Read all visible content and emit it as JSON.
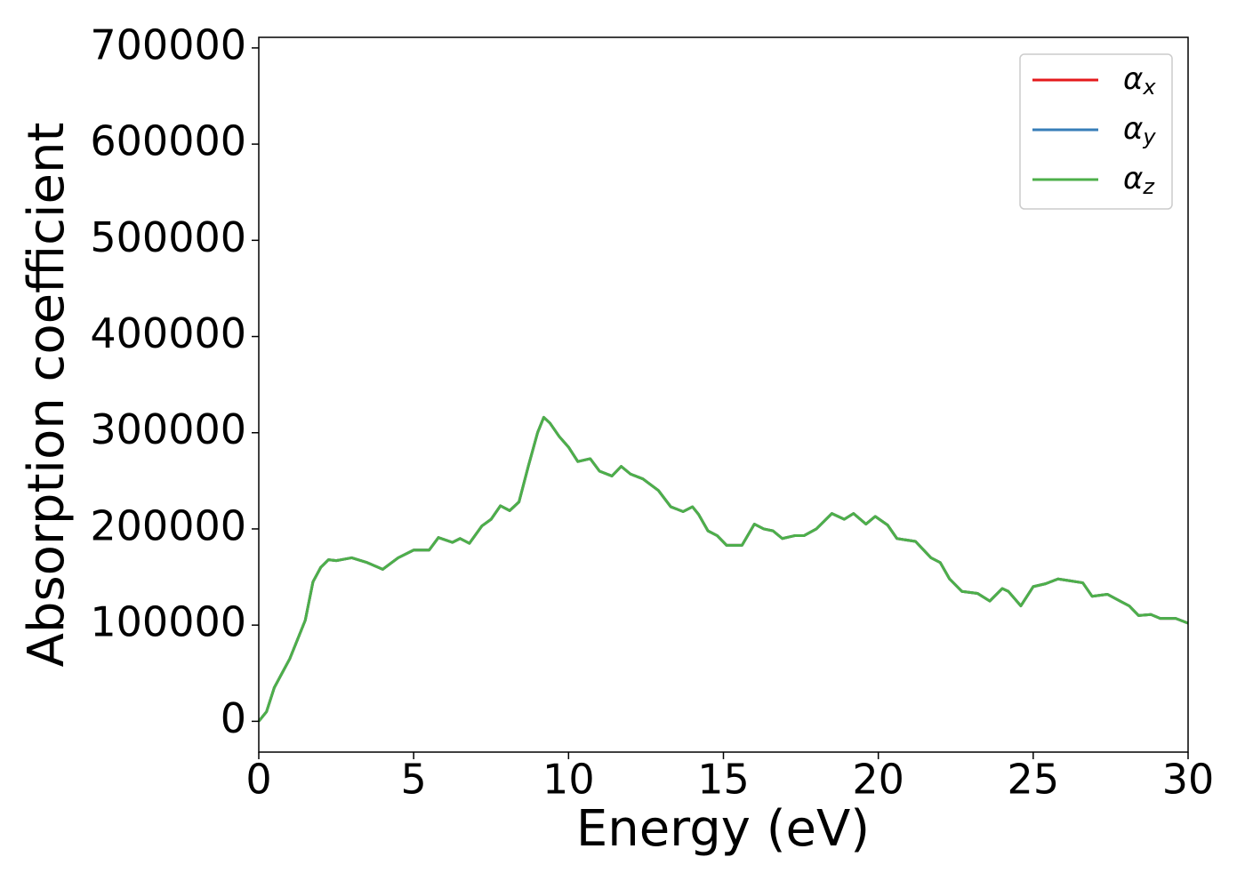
{
  "chart_data": {
    "type": "line",
    "xlabel": "Energy (eV)",
    "ylabel": "Absorption coefficient",
    "x": [
      0,
      0.25,
      0.5,
      0.75,
      1,
      1.25,
      1.5,
      1.75,
      2,
      2.25,
      2.5,
      3,
      3.5,
      4,
      4.5,
      5,
      5.5,
      5.8,
      6.25,
      6.5,
      6.8,
      7.2,
      7.5,
      7.8,
      8.1,
      8.4,
      8.7,
      9,
      9.2,
      9.4,
      9.7,
      10,
      10.3,
      10.7,
      11,
      11.4,
      11.7,
      12,
      12.4,
      12.9,
      13.3,
      13.7,
      14,
      14.2,
      14.5,
      14.8,
      15.1,
      15.6,
      16,
      16.3,
      16.6,
      16.9,
      17.3,
      17.6,
      18,
      18.5,
      18.9,
      19.2,
      19.6,
      19.9,
      20.3,
      20.6,
      21.2,
      21.7,
      22,
      22.3,
      22.7,
      23.2,
      23.6,
      24,
      24.2,
      24.6,
      25,
      25.4,
      25.8,
      26.2,
      26.6,
      26.9,
      27.4,
      27.8,
      28.1,
      28.4,
      28.8,
      29.1,
      29.6,
      30
    ],
    "series": [
      {
        "name": "αx",
        "color": "#e41a1c",
        "values": [
          0,
          10000,
          35000,
          50000,
          65000,
          85000,
          105000,
          145000,
          160000,
          168000,
          167000,
          170000,
          165000,
          158000,
          170000,
          178000,
          178000,
          191000,
          186000,
          190000,
          185000,
          203000,
          210000,
          224000,
          219000,
          228000,
          265000,
          300000,
          316000,
          310000,
          296000,
          285000,
          270000,
          273000,
          260000,
          255000,
          265000,
          257000,
          252000,
          240000,
          223000,
          218000,
          223000,
          215000,
          198000,
          193000,
          183000,
          183000,
          205000,
          200000,
          198000,
          190000,
          193000,
          193000,
          200000,
          216000,
          210000,
          216000,
          205000,
          213000,
          204000,
          190000,
          187000,
          170000,
          165000,
          148000,
          135000,
          133000,
          125000,
          138000,
          135000,
          120000,
          140000,
          143000,
          148000,
          146000,
          144000,
          130000,
          132000,
          125000,
          120000,
          110000,
          111000,
          107000,
          107000,
          102000
        ]
      },
      {
        "name": "αy",
        "color": "#377eb8",
        "values": [
          0,
          10000,
          35000,
          50000,
          65000,
          85000,
          105000,
          145000,
          160000,
          168000,
          167000,
          170000,
          165000,
          158000,
          170000,
          178000,
          178000,
          191000,
          186000,
          190000,
          185000,
          203000,
          210000,
          224000,
          219000,
          228000,
          265000,
          300000,
          316000,
          310000,
          296000,
          285000,
          270000,
          273000,
          260000,
          255000,
          265000,
          257000,
          252000,
          240000,
          223000,
          218000,
          223000,
          215000,
          198000,
          193000,
          183000,
          183000,
          205000,
          200000,
          198000,
          190000,
          193000,
          193000,
          200000,
          216000,
          210000,
          216000,
          205000,
          213000,
          204000,
          190000,
          187000,
          170000,
          165000,
          148000,
          135000,
          133000,
          125000,
          138000,
          135000,
          120000,
          140000,
          143000,
          148000,
          146000,
          144000,
          130000,
          132000,
          125000,
          120000,
          110000,
          111000,
          107000,
          107000,
          102000
        ]
      },
      {
        "name": "αz",
        "color": "#4daf4a",
        "values": [
          0,
          10000,
          35000,
          50000,
          65000,
          85000,
          105000,
          145000,
          160000,
          168000,
          167000,
          170000,
          165000,
          158000,
          170000,
          178000,
          178000,
          191000,
          186000,
          190000,
          185000,
          203000,
          210000,
          224000,
          219000,
          228000,
          265000,
          300000,
          316000,
          310000,
          296000,
          285000,
          270000,
          273000,
          260000,
          255000,
          265000,
          257000,
          252000,
          240000,
          223000,
          218000,
          223000,
          215000,
          198000,
          193000,
          183000,
          183000,
          205000,
          200000,
          198000,
          190000,
          193000,
          193000,
          200000,
          216000,
          210000,
          216000,
          205000,
          213000,
          204000,
          190000,
          187000,
          170000,
          165000,
          148000,
          135000,
          133000,
          125000,
          138000,
          135000,
          120000,
          140000,
          143000,
          148000,
          146000,
          144000,
          130000,
          132000,
          125000,
          120000,
          110000,
          111000,
          107000,
          107000,
          102000
        ]
      }
    ],
    "xlim": [
      0,
      30
    ],
    "xticks": [
      0,
      5,
      10,
      15,
      20,
      25,
      30
    ],
    "ylim": [
      -32000,
      711000
    ],
    "yticks": [
      0,
      100000,
      200000,
      300000,
      400000,
      500000,
      600000,
      700000
    ],
    "legend": "upper right"
  }
}
